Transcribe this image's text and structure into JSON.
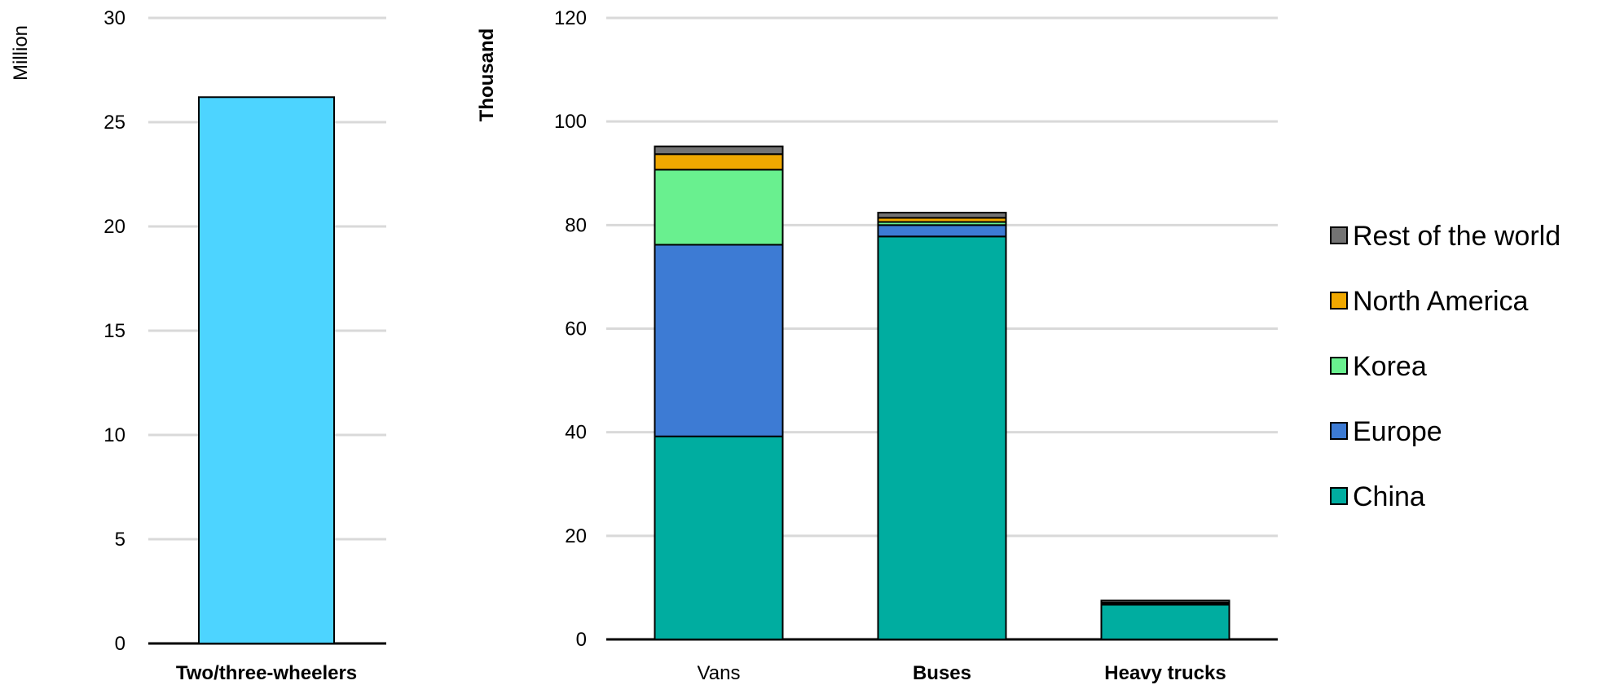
{
  "chart_data": [
    {
      "type": "bar",
      "ylabel": "Million",
      "ylim": [
        0,
        30
      ],
      "yticks": [
        "0",
        "5",
        "10",
        "15",
        "20",
        "25",
        "30"
      ],
      "categories": [
        "Two/three-wheelers"
      ],
      "values": [
        26.2
      ],
      "bar_color": "#4dd4ff",
      "grid": true
    },
    {
      "type": "bar",
      "stacked": true,
      "ylabel": "Thousand",
      "ylim": [
        0,
        120
      ],
      "yticks": [
        "0",
        "20",
        "40",
        "60",
        "80",
        "100",
        "120"
      ],
      "categories": [
        "Vans",
        "Buses",
        "Heavy trucks"
      ],
      "series": [
        {
          "name": "China",
          "color": "#00ada0",
          "values": [
            39.2,
            77.8,
            6.7
          ]
        },
        {
          "name": "Europe",
          "color": "#3d7bd4",
          "values": [
            37.0,
            2.2,
            0.3
          ]
        },
        {
          "name": "Korea",
          "color": "#69f08f",
          "values": [
            14.5,
            0.6,
            0.0
          ]
        },
        {
          "name": "North America",
          "color": "#f0a800",
          "values": [
            3.0,
            0.8,
            0.1
          ]
        },
        {
          "name": "Rest of the world",
          "color": "#737373",
          "values": [
            1.5,
            1.0,
            0.4
          ]
        }
      ],
      "legend_position": "right",
      "grid": true
    }
  ],
  "legend_order": [
    "Rest of the world",
    "North America",
    "Korea",
    "Europe",
    "China"
  ]
}
